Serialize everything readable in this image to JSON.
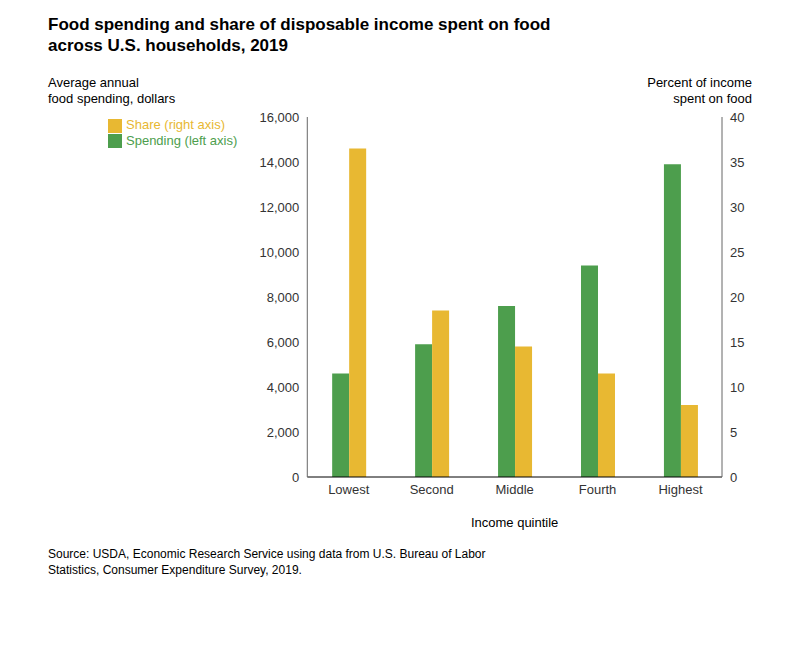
{
  "chart_data": {
    "type": "bar",
    "title": "Food spending and share of disposable income spent on food\nacross U.S. households, 2019",
    "x_label": "Income quintile",
    "y_label": "Average annual\nfood spending, dollars",
    "y2_label": "Percent of income\nspent on food",
    "source": "Source: USDA, Economic Research Service using data from U.S. Bureau of Labor\nStatistics, Consumer Expenditure Survey, 2019.",
    "categories": [
      "Lowest",
      "Second",
      "Middle",
      "Fourth",
      "Highest"
    ],
    "series": [
      {
        "name": "Spending (left axis)",
        "color": "#4d9e4d",
        "axis": "y",
        "values": [
          4600,
          5900,
          7600,
          9400,
          13900
        ]
      },
      {
        "name": "Share (right axis)",
        "color": "#e8b832",
        "axis": "y2",
        "values": [
          36.5,
          18.5,
          14.5,
          11.5,
          8.0
        ]
      }
    ],
    "ylim": [
      0,
      16000
    ],
    "yticks": [
      0,
      {
        "value": 2000,
        "label": "2,000"
      },
      {
        "value": 4000,
        "label": "4,000"
      },
      {
        "value": 6000,
        "label": "6,000"
      },
      {
        "value": 8000,
        "label": "8,000"
      },
      {
        "value": 10000,
        "label": "10,000"
      },
      {
        "value": 12000,
        "label": "12,000"
      },
      {
        "value": 14000,
        "label": "14,000"
      },
      {
        "value": 16000,
        "label": "16,000"
      }
    ],
    "y2lim": [
      0,
      40
    ],
    "y2ticks": [
      0,
      5,
      10,
      15,
      20,
      25,
      30,
      35,
      40
    ],
    "grid": false,
    "legend": "upper left"
  }
}
